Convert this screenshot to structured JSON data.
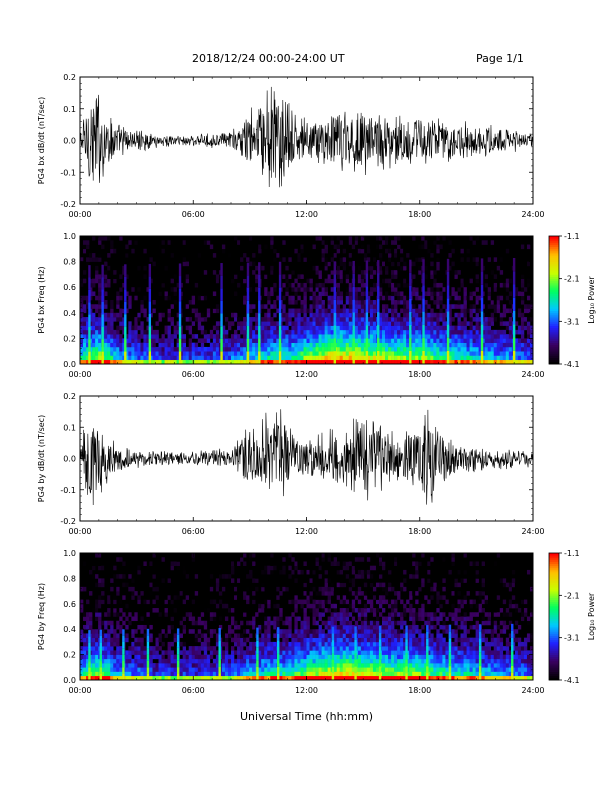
{
  "header": {
    "date_range": "2018/12/24  00:00-24:00 UT",
    "page": "Page 1/1"
  },
  "colors": {
    "trace": "#000000",
    "spectrogram_background": "#000000",
    "colorbar_scale": [
      "#000000",
      "#3a0060",
      "#2020ff",
      "#00c8ff",
      "#00ff60",
      "#c8ff00",
      "#ffc000",
      "#ff0000"
    ]
  },
  "chart_data": [
    {
      "type": "line",
      "ylabel": "PG4 bx dB/dt (nT/sec)",
      "xlabel": "",
      "xlim": [
        "00:00",
        "24:00"
      ],
      "xticks": [
        "00:00",
        "06:00",
        "12:00",
        "18:00",
        "24:00"
      ],
      "ylim": [
        -0.2,
        0.2
      ],
      "yticks": [
        "0.2",
        "0.1",
        "0.0",
        "-0.1",
        "-0.2"
      ],
      "envelope_hours": [
        0,
        0.5,
        1,
        1.5,
        2,
        3,
        4,
        5,
        6,
        7,
        8,
        8.5,
        9,
        9.5,
        10,
        10.5,
        11,
        11.5,
        12,
        13,
        14,
        15,
        16,
        17,
        18,
        19,
        20,
        21,
        22,
        23,
        24
      ],
      "envelope_amplitude": [
        0.04,
        0.2,
        0.2,
        0.1,
        0.06,
        0.04,
        0.025,
        0.02,
        0.02,
        0.025,
        0.035,
        0.06,
        0.12,
        0.15,
        0.2,
        0.2,
        0.14,
        0.09,
        0.08,
        0.09,
        0.12,
        0.13,
        0.1,
        0.09,
        0.1,
        0.08,
        0.07,
        0.06,
        0.05,
        0.04,
        0.03
      ]
    },
    {
      "type": "heatmap",
      "ylabel": "PG4 bx Freq (Hz)",
      "xlabel": "",
      "xlim": [
        "00:00",
        "24:00"
      ],
      "xticks": [
        "00:00",
        "06:00",
        "12:00",
        "18:00",
        "24:00"
      ],
      "ylim": [
        0.0,
        1.0
      ],
      "yticks": [
        "1.0",
        "0.8",
        "0.6",
        "0.4",
        "0.2",
        "0.0"
      ],
      "colorbar": {
        "label": "Log₁₀ Power",
        "range": [
          -4.1,
          -1.1
        ],
        "ticks": [
          "-1.1",
          "-2.1",
          "-3.1",
          "-4.1"
        ]
      },
      "activity_hours": [
        0,
        1,
        2,
        4,
        6,
        8,
        10,
        11,
        12,
        13,
        14,
        15,
        16,
        17,
        18,
        19,
        20,
        21,
        22,
        23,
        24
      ],
      "activity_level": [
        0.55,
        0.75,
        0.45,
        0.3,
        0.3,
        0.35,
        0.55,
        0.55,
        0.7,
        0.85,
        0.9,
        0.85,
        0.75,
        0.7,
        0.7,
        0.6,
        0.55,
        0.5,
        0.45,
        0.4,
        0.35
      ],
      "bright_line_hours": [
        0.5,
        1.2,
        2.4,
        3.7,
        5.3,
        7.5,
        8.9,
        9.5,
        10.6,
        13.5,
        14.5,
        15.2,
        15.8,
        17.5,
        18.2,
        19.5,
        21.3,
        23.0
      ]
    },
    {
      "type": "line",
      "ylabel": "PG4 by dB/dt (nT/sec)",
      "xlabel": "",
      "xlim": [
        "00:00",
        "24:00"
      ],
      "xticks": [
        "00:00",
        "06:00",
        "12:00",
        "18:00",
        "24:00"
      ],
      "ylim": [
        -0.2,
        0.2
      ],
      "yticks": [
        "0.2",
        "0.1",
        "0.0",
        "-0.1",
        "-0.2"
      ],
      "envelope_hours": [
        0,
        0.5,
        1,
        1.5,
        2,
        3,
        4,
        5,
        6,
        7,
        8,
        8.5,
        9,
        9.5,
        10,
        10.5,
        11,
        11.5,
        12,
        13,
        14,
        15,
        16,
        17,
        18,
        18.5,
        19,
        20,
        21,
        22,
        23,
        24
      ],
      "envelope_amplitude": [
        0.04,
        0.2,
        0.15,
        0.08,
        0.05,
        0.04,
        0.03,
        0.025,
        0.025,
        0.03,
        0.04,
        0.08,
        0.12,
        0.14,
        0.18,
        0.2,
        0.12,
        0.09,
        0.08,
        0.1,
        0.14,
        0.16,
        0.12,
        0.1,
        0.12,
        0.2,
        0.1,
        0.06,
        0.05,
        0.04,
        0.035,
        0.03
      ]
    },
    {
      "type": "heatmap",
      "ylabel": "PG4 by Freq (Hz)",
      "xlabel": "Universal Time (hh:mm)",
      "xlim": [
        "00:00",
        "24:00"
      ],
      "xticks": [
        "00:00",
        "06:00",
        "12:00",
        "18:00",
        "24:00"
      ],
      "ylim": [
        0.0,
        1.0
      ],
      "yticks": [
        "1.0",
        "0.8",
        "0.6",
        "0.4",
        "0.2",
        "0.0"
      ],
      "colorbar": {
        "label": "Log₁₀ Power",
        "range": [
          -4.1,
          -1.1
        ],
        "ticks": [
          "-1.1",
          "-2.1",
          "-3.1",
          "-4.1"
        ]
      },
      "activity_hours": [
        0,
        1,
        2,
        4,
        6,
        8,
        10,
        11,
        12,
        13,
        14,
        15,
        16,
        17,
        18,
        19,
        20,
        21,
        22,
        23,
        24
      ],
      "activity_level": [
        0.5,
        0.7,
        0.45,
        0.3,
        0.3,
        0.35,
        0.55,
        0.55,
        0.7,
        0.8,
        0.85,
        0.8,
        0.75,
        0.7,
        0.7,
        0.6,
        0.55,
        0.5,
        0.45,
        0.4,
        0.35
      ],
      "bright_line_hours": [
        0.5,
        1.1,
        2.3,
        3.6,
        5.2,
        7.4,
        9.4,
        10.5,
        13.4,
        14.6,
        15.9,
        17.3,
        18.4,
        19.6,
        21.2,
        22.9
      ]
    }
  ]
}
